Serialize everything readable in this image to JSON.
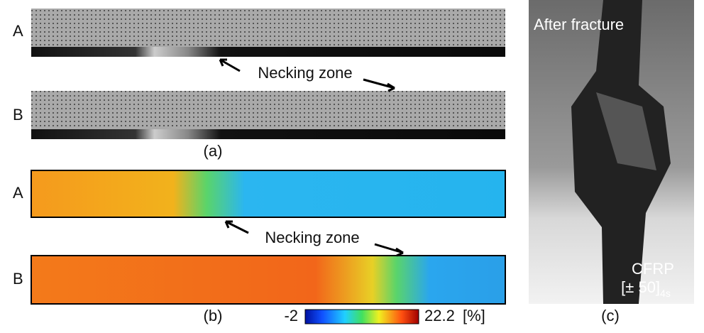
{
  "panel_a": {
    "rows": [
      "A",
      "B"
    ],
    "annotation": "Necking zone",
    "caption": "(a)"
  },
  "panel_b": {
    "rows": [
      "A",
      "B"
    ],
    "annotation": "Necking zone",
    "caption": "(b)",
    "colorbar": {
      "min": -2,
      "max": 22.2,
      "unit": "[%]"
    }
  },
  "panel_c": {
    "title": "After fracture",
    "material": "CFRP",
    "layup": "[± 50]",
    "layup_subscript": "4s",
    "caption": "(c)"
  }
}
